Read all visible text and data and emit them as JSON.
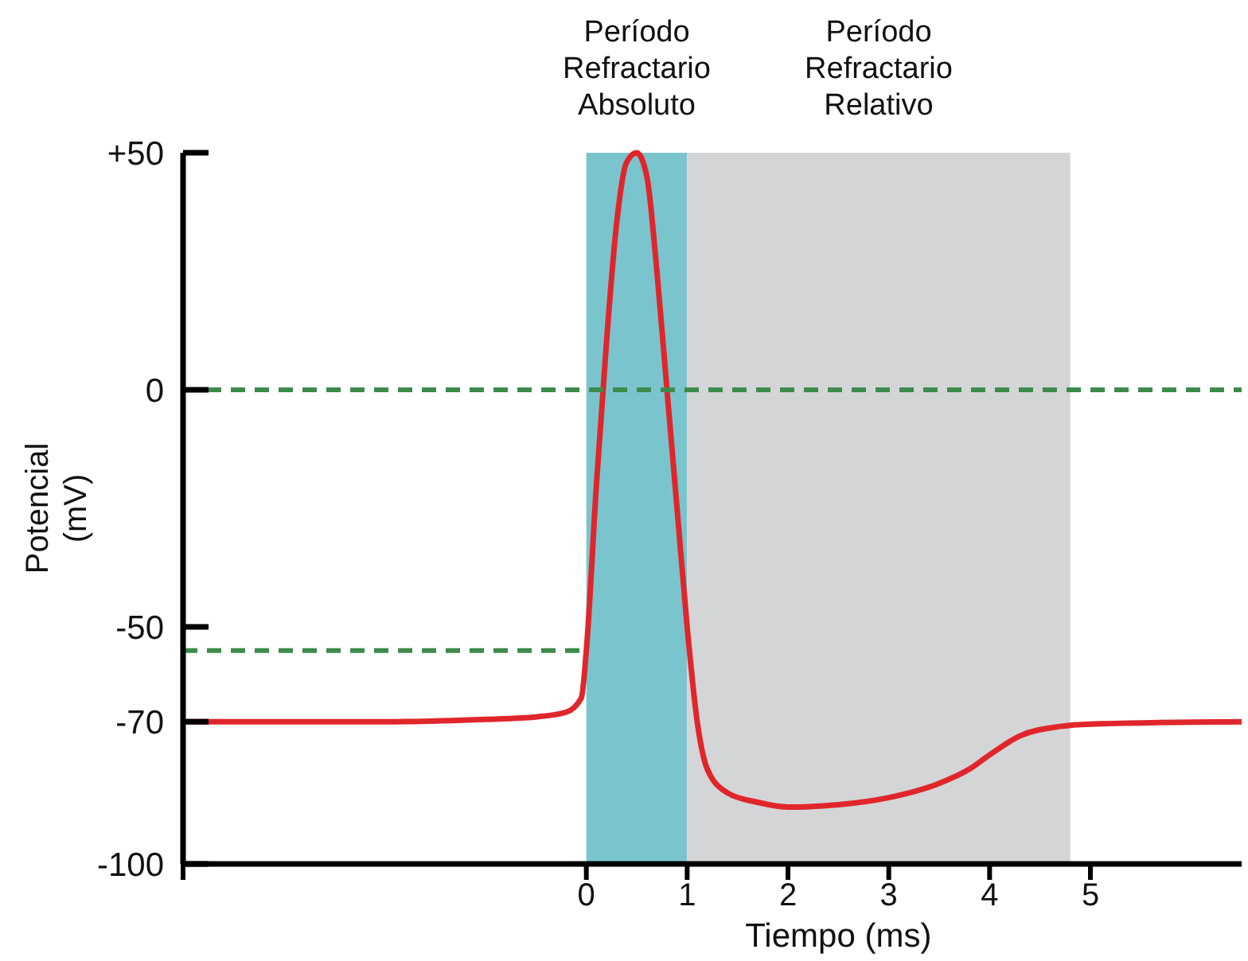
{
  "chart_data": {
    "type": "line",
    "xlabel": "Tiempo (ms)",
    "ylabel": "Potencial\n(mV)",
    "xlim": [
      -4,
      6.5
    ],
    "xticks": [
      {
        "value": -4,
        "label": null
      },
      0,
      1,
      2,
      3,
      4,
      5
    ],
    "ylim": [
      -100,
      50
    ],
    "yticks": [
      -100,
      -70,
      -50,
      0,
      {
        "value": 50,
        "label": "+50"
      }
    ],
    "grid": false,
    "series": [
      {
        "color": "#e0262b",
        "line_style": "solid",
        "x": [
          -4,
          -2,
          -1,
          -0.5,
          -0.2,
          -0.05,
          0,
          0.1,
          0.2,
          0.3,
          0.4,
          0.5,
          0.6,
          0.7,
          0.8,
          0.9,
          1.0,
          1.1,
          1.2,
          1.4,
          1.7,
          2.0,
          2.5,
          3.0,
          3.5,
          3.8,
          4.0,
          4.3,
          4.7,
          5.0,
          6.5
        ],
        "values": [
          -70,
          -70,
          -69.5,
          -69,
          -68,
          -65,
          -55,
          -20,
          10,
          35,
          48,
          50,
          45,
          25,
          0,
          -25,
          -50,
          -70,
          -80,
          -85,
          -87,
          -88,
          -87.5,
          -86,
          -83,
          -80,
          -77,
          -73,
          -71,
          -70.5,
          -70
        ]
      },
      {
        "color": "#3d8b4a",
        "line_style": "dashed",
        "x": [
          -4,
          0
        ],
        "values": [
          -55,
          -55
        ]
      }
    ],
    "ref_lines": [
      {
        "axis": "y",
        "value": 0,
        "color": "#3d8b4a",
        "line_style": "dashed"
      }
    ],
    "bands": [
      {
        "axis": "x",
        "from": 0,
        "to": 1,
        "label": "Período\nRefractario\nAbsoluto",
        "color": "#7ac5cd"
      },
      {
        "axis": "x",
        "from": 1,
        "to": 4.8,
        "label": "Período\nRefractario\nRelativo",
        "color": "#d4d5d6"
      }
    ]
  }
}
